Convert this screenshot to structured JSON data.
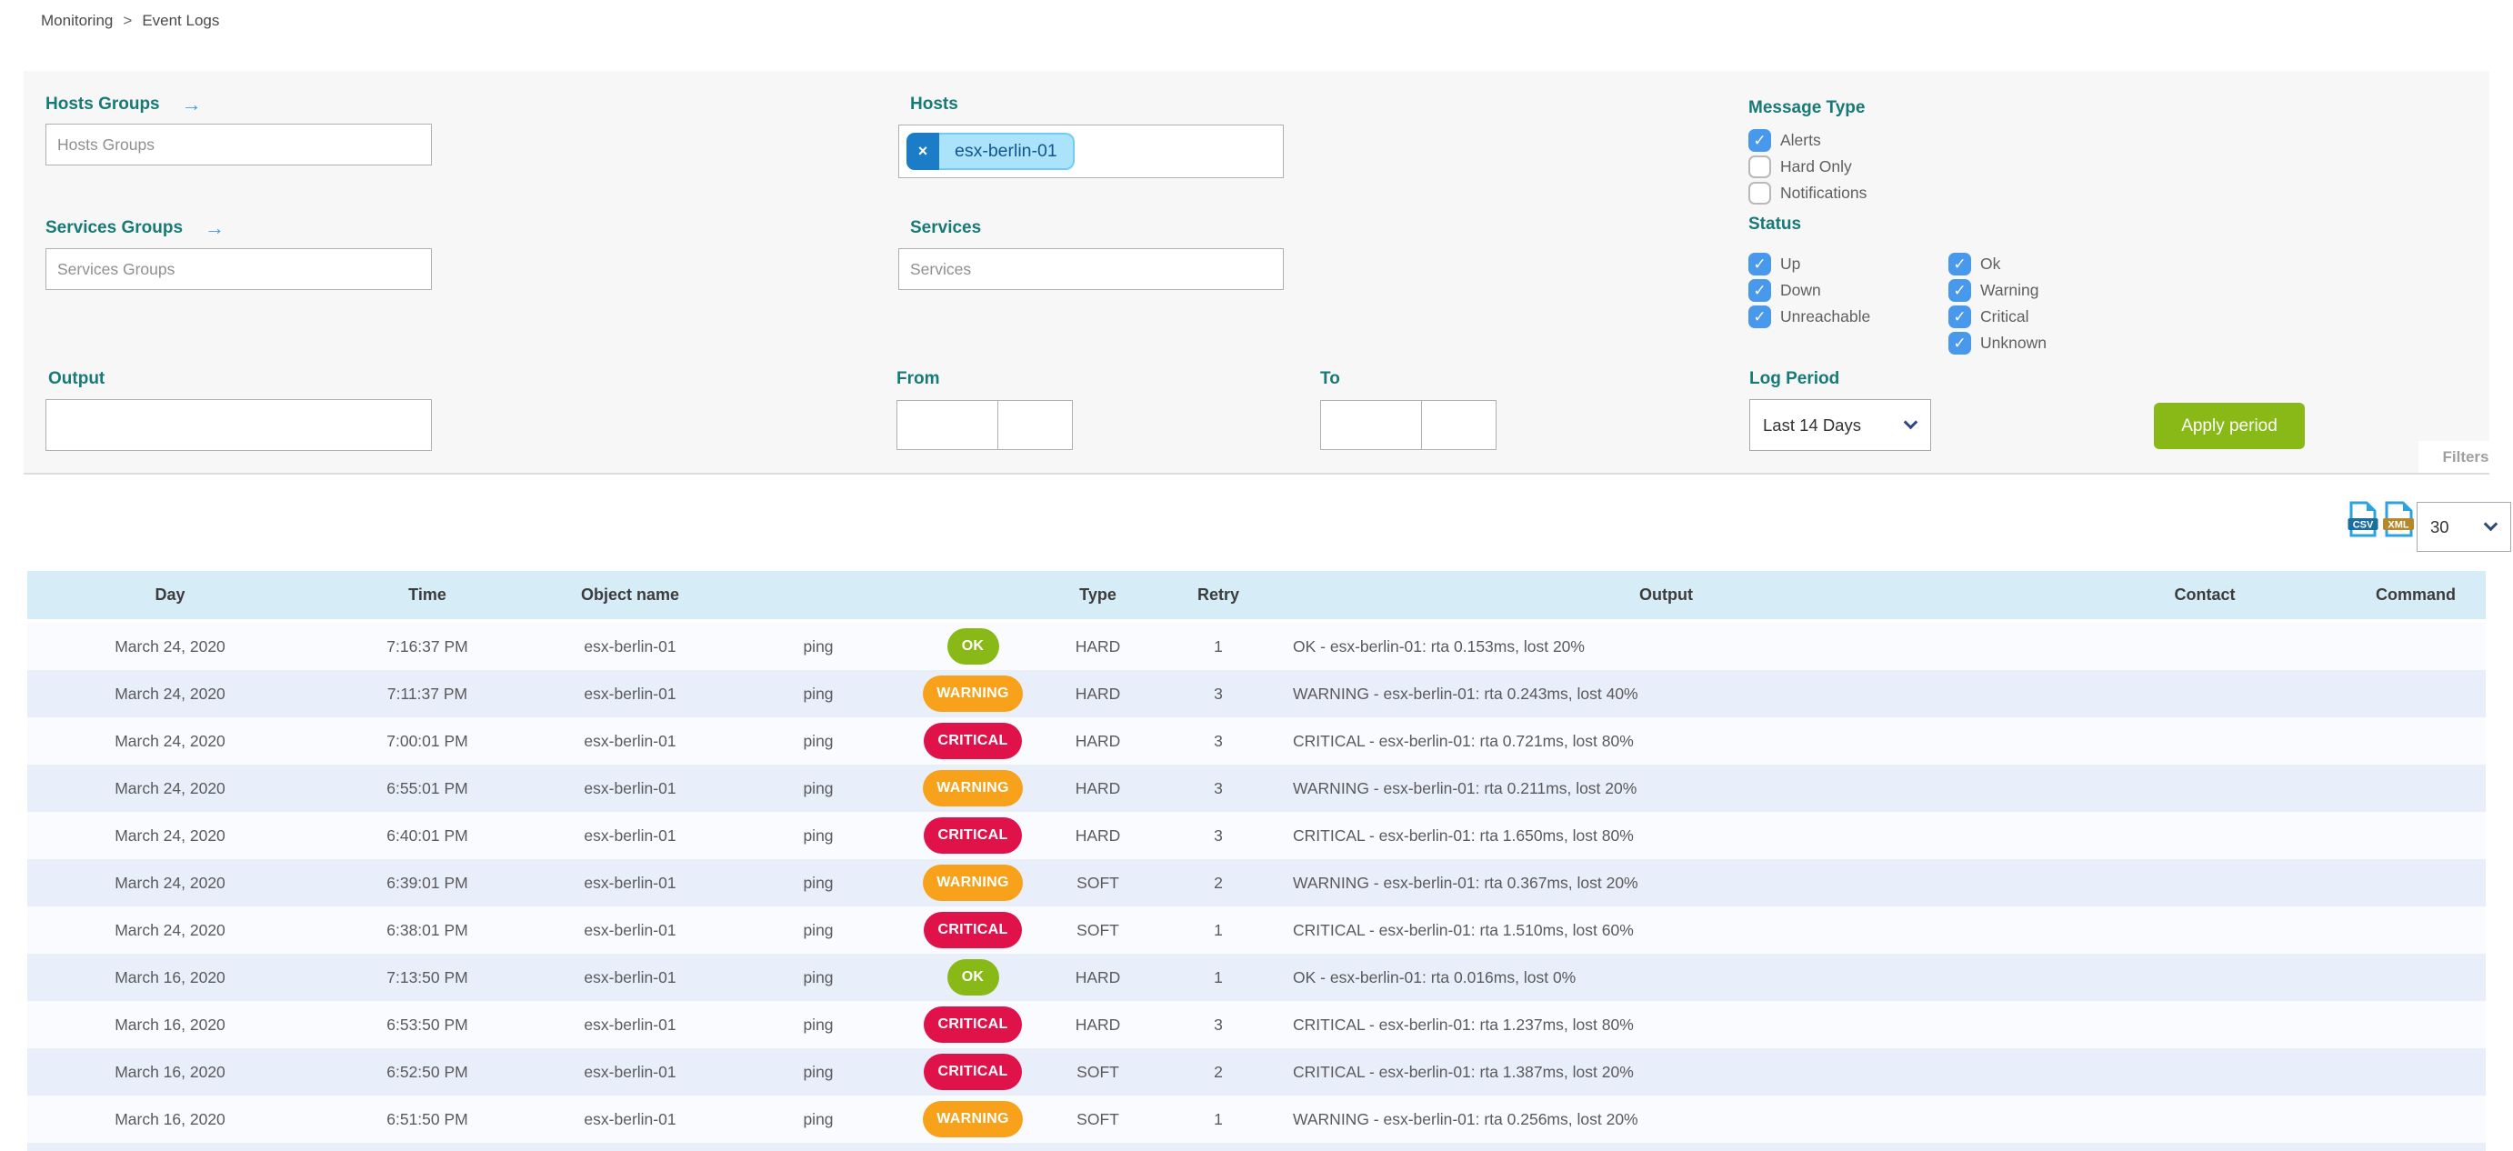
{
  "breadcrumb": {
    "items": [
      "Monitoring",
      "Event Logs"
    ],
    "separator": ">"
  },
  "panel": {
    "hosts_groups_label": "Hosts Groups",
    "hosts_groups_placeholder": "Hosts Groups",
    "services_groups_label": "Services Groups",
    "services_groups_placeholder": "Services Groups",
    "hosts_label": "Hosts",
    "hosts_chip": "esx-berlin-01",
    "hosts_chip_remove": "×",
    "services_label": "Services",
    "services_placeholder": "Services",
    "output_label": "Output",
    "from_label": "From",
    "to_label": "To",
    "message_type_label": "Message Type",
    "message_type_options": [
      {
        "label": "Alerts",
        "checked": true
      },
      {
        "label": "Hard Only",
        "checked": false
      },
      {
        "label": "Notifications",
        "checked": false
      }
    ],
    "status_label": "Status",
    "status_col1": [
      {
        "label": "Up",
        "checked": true
      },
      {
        "label": "Down",
        "checked": true
      },
      {
        "label": "Unreachable",
        "checked": true
      }
    ],
    "status_col2": [
      {
        "label": "Ok",
        "checked": true
      },
      {
        "label": "Warning",
        "checked": true
      },
      {
        "label": "Critical",
        "checked": true
      },
      {
        "label": "Unknown",
        "checked": true
      }
    ],
    "log_period_label": "Log Period",
    "log_period_value": "Last 14 Days",
    "apply_button": "Apply period",
    "filters_tab": "Filters"
  },
  "toolbar": {
    "csv_icon": "CSV",
    "xml_icon": "XML",
    "page_size": "30"
  },
  "table": {
    "columns": [
      "Day",
      "Time",
      "Object name",
      "",
      "",
      "Type",
      "Retry",
      "Output",
      "Contact",
      "Command"
    ],
    "rows": [
      {
        "day": "March 24, 2020",
        "time": "7:16:37 PM",
        "object": "esx-berlin-01",
        "service": "ping",
        "status": "OK",
        "type": "HARD",
        "retry": "1",
        "output": "OK - esx-berlin-01: rta 0.153ms, lost 20%",
        "contact": "",
        "command": ""
      },
      {
        "day": "March 24, 2020",
        "time": "7:11:37 PM",
        "object": "esx-berlin-01",
        "service": "ping",
        "status": "WARNING",
        "type": "HARD",
        "retry": "3",
        "output": "WARNING - esx-berlin-01: rta 0.243ms, lost 40%",
        "contact": "",
        "command": ""
      },
      {
        "day": "March 24, 2020",
        "time": "7:00:01 PM",
        "object": "esx-berlin-01",
        "service": "ping",
        "status": "CRITICAL",
        "type": "HARD",
        "retry": "3",
        "output": "CRITICAL - esx-berlin-01: rta 0.721ms, lost 80%",
        "contact": "",
        "command": ""
      },
      {
        "day": "March 24, 2020",
        "time": "6:55:01 PM",
        "object": "esx-berlin-01",
        "service": "ping",
        "status": "WARNING",
        "type": "HARD",
        "retry": "3",
        "output": "WARNING - esx-berlin-01: rta 0.211ms, lost 20%",
        "contact": "",
        "command": ""
      },
      {
        "day": "March 24, 2020",
        "time": "6:40:01 PM",
        "object": "esx-berlin-01",
        "service": "ping",
        "status": "CRITICAL",
        "type": "HARD",
        "retry": "3",
        "output": "CRITICAL - esx-berlin-01: rta 1.650ms, lost 80%",
        "contact": "",
        "command": ""
      },
      {
        "day": "March 24, 2020",
        "time": "6:39:01 PM",
        "object": "esx-berlin-01",
        "service": "ping",
        "status": "WARNING",
        "type": "SOFT",
        "retry": "2",
        "output": "WARNING - esx-berlin-01: rta 0.367ms, lost 20%",
        "contact": "",
        "command": ""
      },
      {
        "day": "March 24, 2020",
        "time": "6:38:01 PM",
        "object": "esx-berlin-01",
        "service": "ping",
        "status": "CRITICAL",
        "type": "SOFT",
        "retry": "1",
        "output": "CRITICAL - esx-berlin-01: rta 1.510ms, lost 60%",
        "contact": "",
        "command": ""
      },
      {
        "day": "March 16, 2020",
        "time": "7:13:50 PM",
        "object": "esx-berlin-01",
        "service": "ping",
        "status": "OK",
        "type": "HARD",
        "retry": "1",
        "output": "OK - esx-berlin-01: rta 0.016ms, lost 0%",
        "contact": "",
        "command": ""
      },
      {
        "day": "March 16, 2020",
        "time": "6:53:50 PM",
        "object": "esx-berlin-01",
        "service": "ping",
        "status": "CRITICAL",
        "type": "HARD",
        "retry": "3",
        "output": "CRITICAL - esx-berlin-01: rta 1.237ms, lost 80%",
        "contact": "",
        "command": ""
      },
      {
        "day": "March 16, 2020",
        "time": "6:52:50 PM",
        "object": "esx-berlin-01",
        "service": "ping",
        "status": "CRITICAL",
        "type": "SOFT",
        "retry": "2",
        "output": "CRITICAL - esx-berlin-01: rta 1.387ms, lost 20%",
        "contact": "",
        "command": ""
      },
      {
        "day": "March 16, 2020",
        "time": "6:51:50 PM",
        "object": "esx-berlin-01",
        "service": "ping",
        "status": "WARNING",
        "type": "SOFT",
        "retry": "1",
        "output": "WARNING - esx-berlin-01: rta 0.256ms, lost 20%",
        "contact": "",
        "command": ""
      }
    ]
  },
  "colors": {
    "accent_teal": "#177a76",
    "checkbox_blue": "#4898ec",
    "status_ok": "#88b917",
    "status_warning": "#f8a21c",
    "status_critical": "#e0124a",
    "apply_green": "#88b917",
    "chip_bg": "#aae3fa",
    "chip_border": "#6fcdf5",
    "chip_text": "#15548f",
    "chip_remove_bg": "#1b7cc8",
    "table_header_bg": "#d6edf7",
    "row_alt_bg": "#e9eefb",
    "csv_band": "#1b6e9e",
    "xml_band": "#b5892a",
    "file_icon_blue": "#2aa3e0"
  }
}
